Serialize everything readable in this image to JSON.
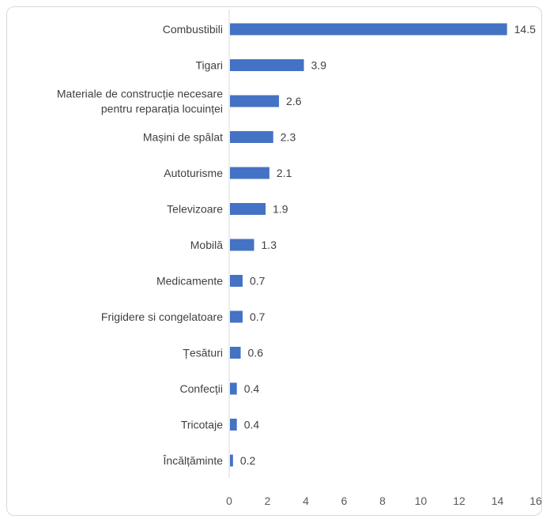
{
  "chart_data": {
    "type": "bar",
    "orientation": "horizontal",
    "categories": [
      [
        "Combustibili"
      ],
      [
        "Tigari"
      ],
      [
        "Materiale de construcție necesare",
        "pentru  reparația locuinței"
      ],
      [
        "Mașini de spălat"
      ],
      [
        "Autoturisme"
      ],
      [
        "Televizoare"
      ],
      [
        "Mobilă"
      ],
      [
        "Medicamente"
      ],
      [
        "Frigidere si congelatoare"
      ],
      [
        "Țesături"
      ],
      [
        "Confecții"
      ],
      [
        "Tricotaje"
      ],
      [
        "Încălțăminte"
      ]
    ],
    "values": [
      14.5,
      3.9,
      2.6,
      2.3,
      2.1,
      1.9,
      1.3,
      0.7,
      0.7,
      0.6,
      0.4,
      0.4,
      0.2
    ],
    "value_labels": [
      "14.5",
      "3.9",
      "2.6",
      "2.3",
      "2.1",
      "1.9",
      "1.3",
      "0.7",
      "0.7",
      "0.6",
      "0.4",
      "0.4",
      "0.2"
    ],
    "xlim": [
      0,
      16
    ],
    "x_ticks": [
      0,
      2,
      4,
      6,
      8,
      10,
      12,
      14,
      16
    ],
    "grid": false,
    "legend": "none",
    "bar_color": "#4472c4",
    "axis_color": "#d9d9d9"
  }
}
